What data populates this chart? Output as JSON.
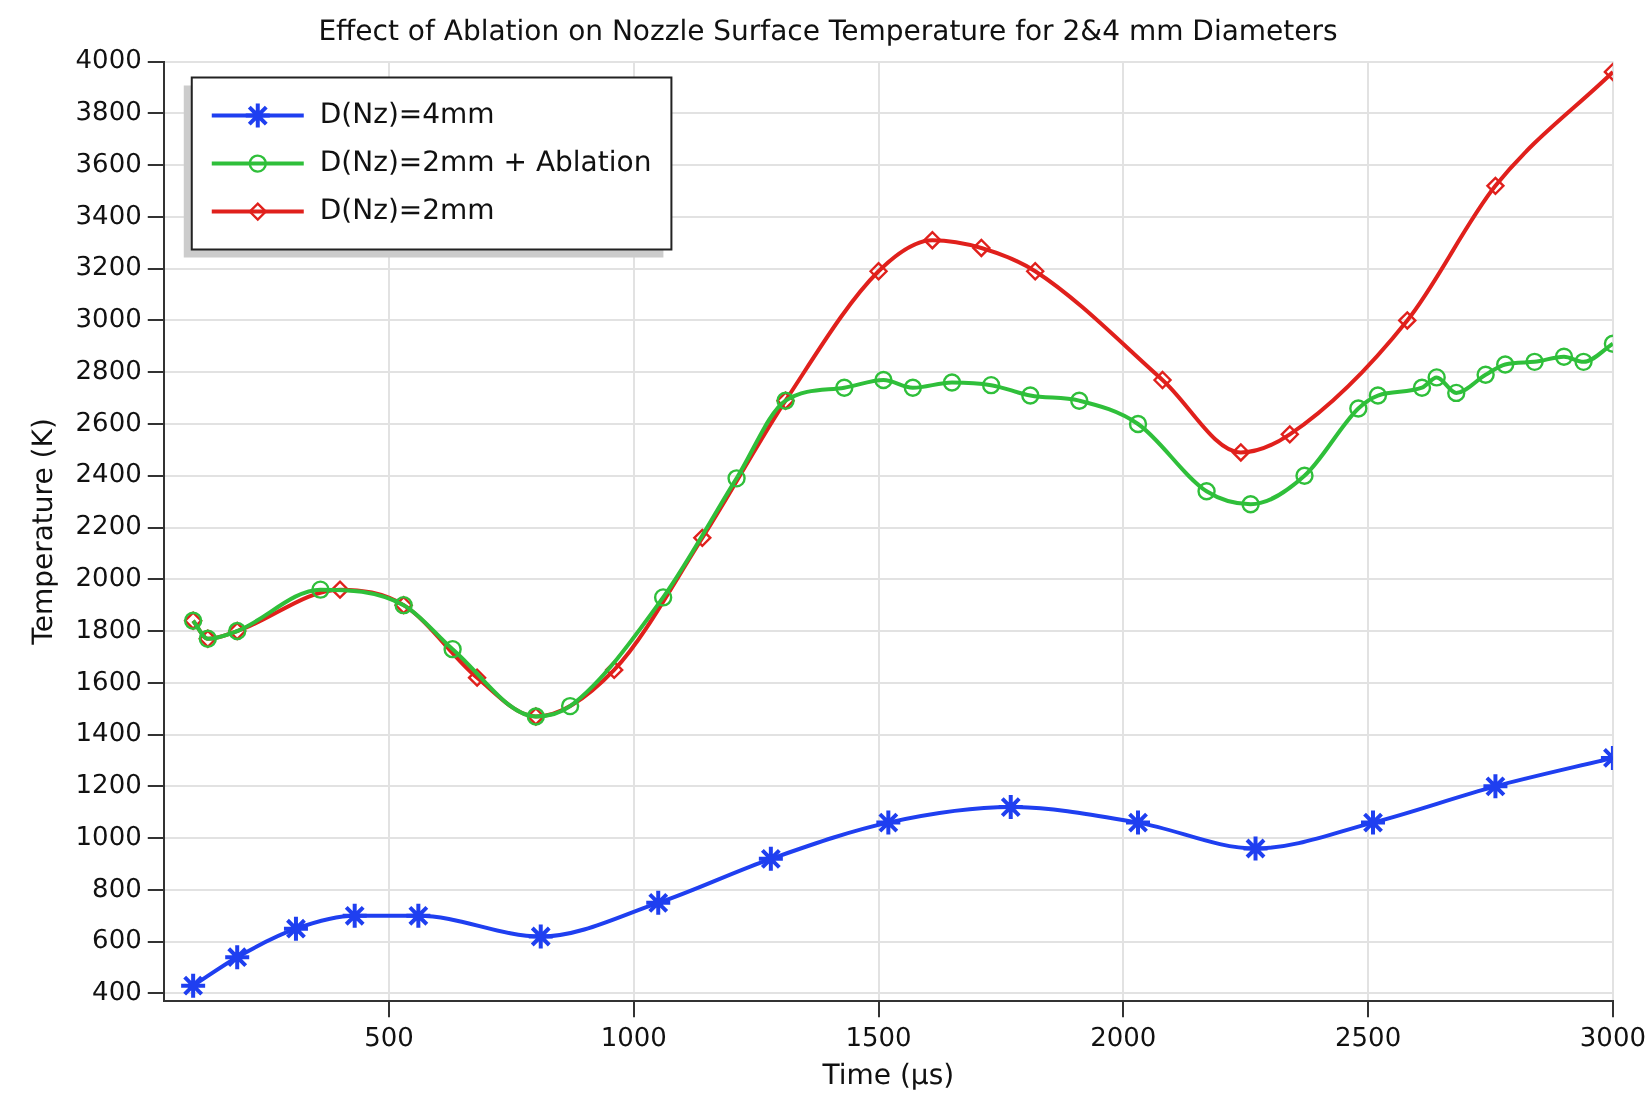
{
  "chart_data": {
    "type": "line",
    "title": "Effect of Ablation on Nozzle Surface Temperature for 2&4 mm Diameters",
    "xlabel": "Time (µs)",
    "ylabel": "Temperature (K)",
    "xlim": [
      40,
      3000
    ],
    "xticks": [
      500,
      1000,
      1500,
      2000,
      2500,
      3000
    ],
    "ylim": [
      370,
      4000
    ],
    "yticks": [
      400,
      600,
      800,
      1000,
      1200,
      1400,
      1600,
      1800,
      2000,
      2200,
      2400,
      2600,
      2800,
      3000,
      3200,
      3400,
      3600,
      3800,
      4000
    ],
    "grid": true,
    "legend": "top left",
    "line_style": "solid",
    "series": [
      {
        "name": "D(Nz)=4mm",
        "color": "#1f3ff0",
        "marker": "cross",
        "x": [
          100,
          190,
          310,
          430,
          560,
          810,
          1050,
          1280,
          1520,
          1770,
          2030,
          2270,
          2510,
          2760,
          3000
        ],
        "values": [
          430,
          540,
          650,
          700,
          700,
          620,
          750,
          920,
          1060,
          1120,
          1060,
          960,
          1060,
          1200,
          1310
        ]
      },
      {
        "name": "D(Nz)=2mm + Ablation",
        "color": "#2fbf3a",
        "marker": "circle",
        "x": [
          100,
          130,
          190,
          360,
          530,
          630,
          800,
          870,
          1060,
          1210,
          1310,
          1430,
          1510,
          1570,
          1650,
          1730,
          1810,
          1910,
          2030,
          2170,
          2260,
          2370,
          2480,
          2520,
          2610,
          2640,
          2680,
          2740,
          2780,
          2840,
          2900,
          2940,
          3000
        ],
        "values": [
          1840,
          1770,
          1800,
          1960,
          1900,
          1730,
          1470,
          1510,
          1930,
          2390,
          2690,
          2740,
          2770,
          2740,
          2760,
          2750,
          2710,
          2690,
          2600,
          2340,
          2290,
          2400,
          2660,
          2710,
          2740,
          2780,
          2720,
          2790,
          2830,
          2840,
          2860,
          2840,
          2910
        ]
      },
      {
        "name": "D(Nz)=2mm",
        "color": "#e0201c",
        "marker": "diamond",
        "x": [
          100,
          130,
          190,
          400,
          530,
          680,
          800,
          960,
          1140,
          1310,
          1500,
          1610,
          1710,
          1820,
          2080,
          2240,
          2340,
          2580,
          2760,
          3000
        ],
        "values": [
          1840,
          1770,
          1800,
          1960,
          1900,
          1620,
          1470,
          1650,
          2160,
          2690,
          3190,
          3310,
          3280,
          3190,
          2770,
          2490,
          2560,
          3000,
          3520,
          3960
        ]
      }
    ]
  }
}
